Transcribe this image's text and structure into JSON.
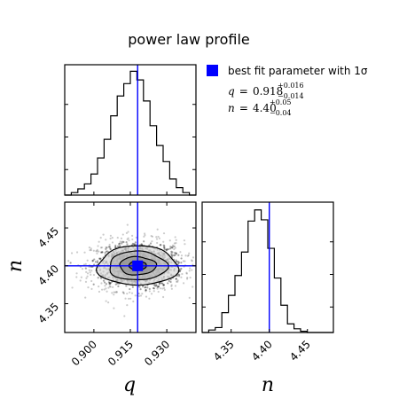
{
  "chart_data": {
    "type": "corner",
    "title": "power law profile",
    "legend": {
      "label": "best fit parameter with 1σ",
      "color": "#0000ff",
      "placement": "top-right"
    },
    "summary": [
      {
        "name": "q",
        "value": "0.918",
        "plus": "+0.016",
        "minus": "−0.014"
      },
      {
        "name": "n",
        "value": "4.40",
        "plus": "+0.05",
        "minus": "−0.04"
      }
    ],
    "best_fit": {
      "q": 0.918,
      "n": 4.4
    },
    "line_color": "#0000ff",
    "axes": {
      "q": {
        "label": "q",
        "lim": [
          0.888,
          0.942
        ],
        "ticks": [
          0.9,
          0.915,
          0.93
        ],
        "tick_labels": [
          "0.900",
          "0.915",
          "0.930"
        ]
      },
      "n": {
        "label": "n",
        "lim": [
          4.312,
          4.484
        ],
        "ticks": [
          4.35,
          4.4,
          4.45
        ],
        "tick_labels": [
          "4.35",
          "4.40",
          "4.45"
        ]
      }
    },
    "hist_q": {
      "edges_start": 0.888,
      "bin_width": 0.0027,
      "counts": [
        0,
        0.02,
        0.05,
        0.09,
        0.17,
        0.3,
        0.45,
        0.64,
        0.8,
        0.9,
        1.0,
        0.93,
        0.76,
        0.56,
        0.4,
        0.27,
        0.13,
        0.06,
        0.02,
        0
      ]
    },
    "hist_n": {
      "edges_start": 4.312,
      "bin_width": 0.0086,
      "counts": [
        0,
        0.02,
        0.04,
        0.16,
        0.3,
        0.46,
        0.65,
        0.9,
        0.99,
        0.91,
        0.68,
        0.44,
        0.22,
        0.07,
        0.03,
        0.01,
        0,
        0,
        0,
        0
      ]
    },
    "contours": [
      {
        "level": 0.5,
        "rq": 0.0165,
        "rn": 0.026
      },
      {
        "level": 1.0,
        "rq": 0.012,
        "rn": 0.019
      },
      {
        "level": 1.5,
        "rq": 0.0075,
        "rn": 0.012
      },
      {
        "level": 2.0,
        "rq": 0.0036,
        "rn": 0.006
      }
    ],
    "scatter": {
      "sigma_q": 0.0095,
      "sigma_n": 0.0165,
      "count": 1400
    }
  }
}
